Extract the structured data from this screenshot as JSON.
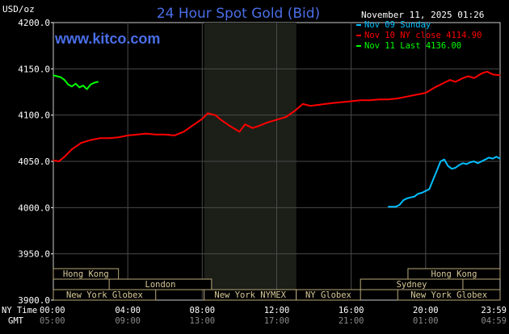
{
  "header": {
    "title": "24 Hour Spot Gold (Bid)",
    "yunit": "USD/oz",
    "datetime": "November 11, 2025 01:26",
    "brand": "www.kitco.com"
  },
  "legend": [
    {
      "label": "Nov 09 Sunday",
      "color": "#00bfff"
    },
    {
      "label": "Nov 10 NY close 4114.90",
      "color": "#ff0000"
    },
    {
      "label": "Nov 11 Last 4136.00",
      "color": "#00ff00"
    }
  ],
  "axis_row_labels": {
    "ny": "NY Time",
    "gmt": "GMT"
  },
  "sessions": [
    {
      "label": "Hong Kong",
      "start": 0.0,
      "end": 3.5,
      "row": 0
    },
    {
      "label": "London",
      "start": 3.0,
      "end": 8.5,
      "row": 1
    },
    {
      "label": "New York Globex",
      "start": 0.0,
      "end": 5.5,
      "row": 2
    },
    {
      "label": "New York NYMEX",
      "start": 8.1,
      "end": 13.05,
      "row": 2
    },
    {
      "label": "NY Globex",
      "start": 13.05,
      "end": 16.5,
      "row": 2
    },
    {
      "label": "Hong Kong",
      "start": 19.05,
      "end": 24.0,
      "row": 0
    },
    {
      "label": "Sydney",
      "start": 16.5,
      "end": 22.0,
      "row": 1
    },
    {
      "label": "New York Globex",
      "start": 18.5,
      "end": 24.0,
      "row": 2
    }
  ],
  "chart_data": {
    "type": "line",
    "title": "24 Hour Spot Gold (Bid)",
    "ylabel": "USD/oz",
    "xlabel": "",
    "xlim": [
      0,
      24
    ],
    "ylim": [
      3900,
      4200
    ],
    "y_ticks": [
      "4200.0",
      "4150.0",
      "4100.0",
      "4050.0",
      "4000.0",
      "3950.0",
      "3900.0"
    ],
    "y_tick_values": [
      4200,
      4150,
      4100,
      4050,
      4000,
      3950,
      3900
    ],
    "x_ticks_ny": [
      "00:00",
      "04:00",
      "08:00",
      "12:00",
      "16:00",
      "20:00",
      "23:59"
    ],
    "x_ticks_gmt": [
      "05:00",
      "09:00",
      "13:00",
      "17:00",
      "21:00",
      "01:00",
      "04:59"
    ],
    "x_tick_values": [
      0,
      4,
      8,
      12,
      16,
      20,
      24
    ],
    "grid": true,
    "shaded_period": [
      8.1,
      13.05
    ],
    "legend_position": "top-right",
    "series": [
      {
        "name": "Nov 09 Sunday",
        "color": "#00bfff",
        "x": [
          18.0,
          18.4,
          18.6,
          18.8,
          19.0,
          19.2,
          19.4,
          19.6,
          19.8,
          20.0,
          20.2,
          20.4,
          20.6,
          20.8,
          21.0,
          21.2,
          21.4,
          21.6,
          21.8,
          22.0,
          22.2,
          22.4,
          22.6,
          22.8,
          23.0,
          23.2,
          23.4,
          23.6,
          23.8,
          23.99
        ],
        "y": [
          4001,
          4001,
          4003,
          4008,
          4010,
          4011,
          4012,
          4015,
          4016,
          4018,
          4020,
          4030,
          4040,
          4050,
          4052,
          4045,
          4042,
          4043,
          4046,
          4048,
          4047,
          4049,
          4050,
          4048,
          4050,
          4052,
          4054,
          4053,
          4055,
          4053
        ]
      },
      {
        "name": "Nov 10 NY close 4114.90",
        "color": "#ff0000",
        "x": [
          0.0,
          0.3,
          0.6,
          1.0,
          1.5,
          2.0,
          2.5,
          3.0,
          3.5,
          4.0,
          4.5,
          5.0,
          5.5,
          6.0,
          6.5,
          7.0,
          7.5,
          8.0,
          8.3,
          8.7,
          9.0,
          9.5,
          10.0,
          10.3,
          10.7,
          11.0,
          11.5,
          12.0,
          12.5,
          13.0,
          13.4,
          13.8,
          14.2,
          14.6,
          15.0,
          15.5,
          16.0,
          16.5,
          17.0,
          17.5,
          18.0,
          18.5,
          19.0,
          19.5,
          20.0,
          20.5,
          21.0,
          21.3,
          21.6,
          22.0,
          22.3,
          22.6,
          23.0,
          23.3,
          23.6,
          23.99
        ],
        "y": [
          4051,
          4050,
          4055,
          4063,
          4070,
          4073,
          4075,
          4075,
          4076,
          4078,
          4079,
          4080,
          4079,
          4079,
          4078,
          4082,
          4089,
          4096,
          4102,
          4100,
          4095,
          4088,
          4082,
          4090,
          4086,
          4088,
          4092,
          4095,
          4098,
          4105,
          4112,
          4110,
          4111,
          4112,
          4113,
          4114,
          4115,
          4116,
          4116,
          4117,
          4117,
          4118,
          4120,
          4122,
          4124,
          4130,
          4135,
          4138,
          4136,
          4140,
          4142,
          4140,
          4145,
          4147,
          4144,
          4143
        ]
      },
      {
        "name": "Nov 11 Last 4136.00",
        "color": "#00ff00",
        "x": [
          0.0,
          0.2,
          0.4,
          0.6,
          0.8,
          1.0,
          1.2,
          1.4,
          1.6,
          1.8,
          2.0,
          2.2,
          2.4
        ],
        "y": [
          4143,
          4142,
          4141,
          4138,
          4133,
          4131,
          4134,
          4130,
          4132,
          4128,
          4133,
          4135,
          4136
        ]
      }
    ]
  }
}
